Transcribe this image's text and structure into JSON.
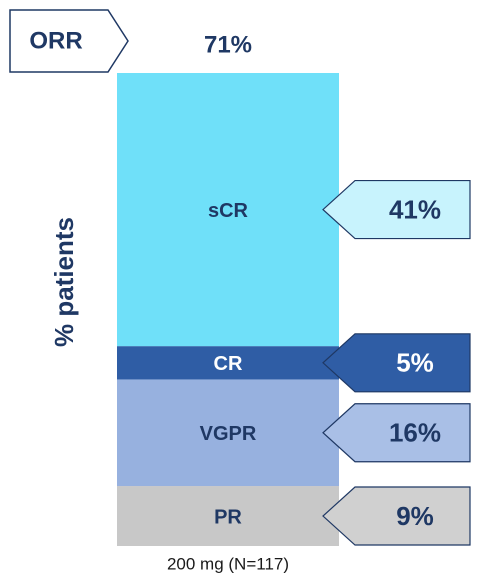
{
  "chart_data": {
    "type": "stacked_bar",
    "total_label": "ORR",
    "total_value_label": "71%",
    "y_label": "% patients",
    "categories": [
      "200 mg (N=117)"
    ],
    "series": [
      {
        "name": "PR",
        "color": "#c8c8c8",
        "values": [
          9
        ],
        "value_labels": [
          "9%"
        ]
      },
      {
        "name": "VGPR",
        "color": "#97b1df",
        "values": [
          16
        ],
        "value_labels": [
          "16%"
        ]
      },
      {
        "name": "CR",
        "color": "#2f5da5",
        "values": [
          5
        ],
        "value_labels": [
          "5%"
        ]
      },
      {
        "name": "sCR",
        "color": "#6fe0f9",
        "values": [
          41
        ],
        "value_labels": [
          "41%"
        ]
      }
    ],
    "ylim": [
      0,
      71
    ]
  }
}
